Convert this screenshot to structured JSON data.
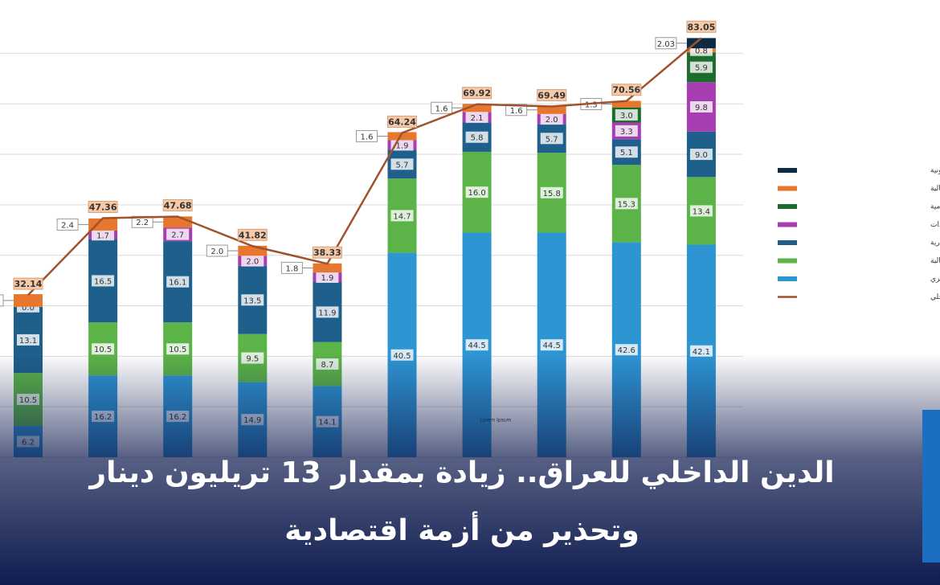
{
  "chart_data": {
    "type": "bar",
    "stacked": true,
    "categories": [
      null,
      null,
      null,
      null,
      null,
      null,
      null,
      null,
      null,
      null
    ],
    "ylim": [
      0,
      85
    ],
    "yticks": [
      0,
      10,
      20,
      30,
      40,
      50,
      60,
      70,
      80
    ],
    "grid": true,
    "legend": "right",
    "annotation": "Lorem Ipsum",
    "series": [
      {
        "name": "حوالات المخصومة من قبل البنك المركزي",
        "color": "#2e95d3",
        "values": [
          6.2,
          16.2,
          16.2,
          14.9,
          14.1,
          40.5,
          44.5,
          44.5,
          42.6,
          42.1
        ]
      },
      {
        "name": "قروض المؤسسات المالية",
        "color": "#5cb348",
        "values": [
          10.5,
          10.5,
          10.5,
          9.5,
          8.7,
          14.7,
          16.0,
          15.8,
          15.3,
          13.4
        ],
        "value_labels": [
          "10.5",
          "10.5",
          "10.5",
          "9.5",
          "8.7",
          "14.7",
          "16.0",
          "15.8",
          "15.3",
          "13.4"
        ]
      },
      {
        "name": "حوالات الخزينة لدى المصارف التجارية",
        "color": "#1f5f8b",
        "values": [
          13.1,
          16.5,
          16.1,
          13.5,
          11.9,
          5.7,
          5.8,
          5.7,
          5.1,
          9.0
        ],
        "value_labels": [
          "13.1",
          "16.5",
          "16.1",
          "13.5",
          "11.9",
          "5.7",
          "5.8",
          "5.7",
          "5.1",
          "9.0"
        ]
      },
      {
        "name": "السندات",
        "color": "#a63db0",
        "values": [
          0,
          1.7,
          2.7,
          2.0,
          1.9,
          1.9,
          2.1,
          2.0,
          3.3,
          9.8
        ],
        "value_labels": [
          "0.0",
          "1.7",
          "2.7",
          "2.0",
          "1.9",
          "1.9",
          "2.1",
          "2.0",
          "3.3",
          "9.8"
        ]
      },
      {
        "name": "قروض المصارف الحكومية",
        "color": "#1e6b2e",
        "values": [
          null,
          null,
          null,
          null,
          null,
          null,
          null,
          null,
          3.0,
          5.9
        ],
        "value_labels": [
          null,
          null,
          null,
          null,
          null,
          null,
          null,
          null,
          "3.0",
          "5.9"
        ]
      },
      {
        "name": "ديون وزارة المالية",
        "color": "#e8772e",
        "values": [
          2.5,
          2.4,
          2.2,
          2.0,
          1.8,
          1.6,
          1.6,
          1.6,
          1.3,
          0.8
        ],
        "value_labels": [
          "2.5",
          "2.4",
          "2.2",
          "2.0",
          "1.8",
          "1.6",
          "1.6",
          "1.6",
          "1.3",
          "0.8"
        ]
      },
      {
        "name": "حوالات الخزينة الالكترونية",
        "color": "#0d2b45",
        "values": [
          null,
          null,
          null,
          null,
          null,
          null,
          null,
          null,
          null,
          2.03
        ]
      }
    ],
    "totals": {
      "name": "اجمالي الدين الداخلي",
      "color": "#a0522d",
      "values": [
        32.14,
        47.36,
        47.68,
        41.82,
        38.33,
        64.24,
        69.92,
        69.49,
        70.56,
        83.05
      ]
    }
  },
  "headline": [
    "الدين الداخلي للعراق.. زيادة بمقدار 13 تريليون دينار",
    "وتحذير من أزمة اقتصادية"
  ]
}
